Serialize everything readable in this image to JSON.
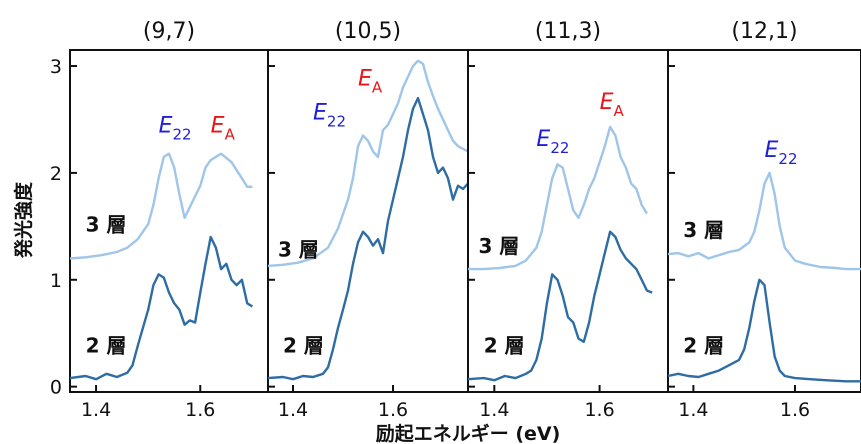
{
  "ylabel": "発光強度",
  "xlabel": "励起エネルギー (eV)",
  "colors": {
    "bilayer": "#2e6da4",
    "trilayer": "#9fc5e8",
    "e22": "#1f1fd6",
    "ea": "#e8151b",
    "frame": "#111111"
  },
  "y_ticks": [
    "0",
    "1",
    "2",
    "3"
  ],
  "y_tick_values": [
    0,
    1,
    2,
    3
  ],
  "chart_data": [
    {
      "type": "line",
      "title": "(9,7)",
      "xlim": [
        1.35,
        1.73
      ],
      "ylim": [
        -0.05,
        3.15
      ],
      "x_ticks": [
        "1.4",
        "1.6"
      ],
      "x_tick_values": [
        1.4,
        1.6
      ],
      "annotations": [
        {
          "main": "E",
          "sub": "22",
          "x": 1.52,
          "y": 2.38,
          "color": "e22"
        },
        {
          "main": "E",
          "sub": "A",
          "x": 1.62,
          "y": 2.38,
          "color": "ea"
        }
      ],
      "layer_labels": [
        {
          "text": "3 層",
          "x": 1.38,
          "y": 1.45
        },
        {
          "text": "2 層",
          "x": 1.38,
          "y": 0.32
        }
      ],
      "series": [
        {
          "name": "3 層",
          "color": "trilayer",
          "x": [
            1.35,
            1.38,
            1.41,
            1.44,
            1.46,
            1.48,
            1.5,
            1.51,
            1.52,
            1.53,
            1.54,
            1.55,
            1.56,
            1.57,
            1.58,
            1.6,
            1.61,
            1.62,
            1.63,
            1.64,
            1.66,
            1.68,
            1.69,
            1.7
          ],
          "y": [
            1.2,
            1.21,
            1.23,
            1.26,
            1.3,
            1.38,
            1.52,
            1.7,
            1.95,
            2.15,
            2.18,
            2.05,
            1.8,
            1.58,
            1.68,
            1.88,
            2.05,
            2.12,
            2.15,
            2.18,
            2.1,
            1.95,
            1.87,
            1.87
          ]
        },
        {
          "name": "2 層",
          "color": "bilayer",
          "x": [
            1.35,
            1.38,
            1.4,
            1.42,
            1.44,
            1.46,
            1.47,
            1.48,
            1.49,
            1.5,
            1.51,
            1.52,
            1.53,
            1.54,
            1.55,
            1.56,
            1.57,
            1.58,
            1.59,
            1.6,
            1.61,
            1.62,
            1.63,
            1.64,
            1.65,
            1.66,
            1.67,
            1.68,
            1.69,
            1.7
          ],
          "y": [
            0.08,
            0.1,
            0.07,
            0.12,
            0.09,
            0.13,
            0.2,
            0.38,
            0.55,
            0.72,
            0.95,
            1.05,
            1.02,
            0.88,
            0.78,
            0.72,
            0.58,
            0.62,
            0.6,
            0.88,
            1.15,
            1.4,
            1.3,
            1.1,
            1.15,
            1.0,
            0.95,
            1.0,
            0.78,
            0.75
          ]
        }
      ]
    },
    {
      "type": "line",
      "title": "(10,5)",
      "xlim": [
        1.35,
        1.75
      ],
      "ylim": [
        -0.05,
        3.15
      ],
      "x_ticks": [
        "1.4",
        "1.6"
      ],
      "x_tick_values": [
        1.4,
        1.6
      ],
      "annotations": [
        {
          "main": "E",
          "sub": "22",
          "x": 1.44,
          "y": 2.5,
          "color": "e22"
        },
        {
          "main": "E",
          "sub": "A",
          "x": 1.53,
          "y": 2.82,
          "color": "ea"
        }
      ],
      "layer_labels": [
        {
          "text": "3 層",
          "x": 1.37,
          "y": 1.22
        },
        {
          "text": "2 層",
          "x": 1.38,
          "y": 0.32
        }
      ],
      "series": [
        {
          "name": "3 層",
          "color": "trilayer",
          "x": [
            1.35,
            1.38,
            1.41,
            1.44,
            1.47,
            1.49,
            1.51,
            1.52,
            1.53,
            1.54,
            1.55,
            1.56,
            1.57,
            1.58,
            1.59,
            1.6,
            1.61,
            1.62,
            1.63,
            1.64,
            1.65,
            1.66,
            1.67,
            1.68,
            1.69,
            1.7,
            1.71,
            1.72,
            1.73,
            1.75
          ],
          "y": [
            1.13,
            1.14,
            1.16,
            1.2,
            1.3,
            1.48,
            1.75,
            1.95,
            2.25,
            2.35,
            2.3,
            2.2,
            2.15,
            2.4,
            2.45,
            2.55,
            2.65,
            2.8,
            2.9,
            3.0,
            3.05,
            3.02,
            2.85,
            2.72,
            2.6,
            2.5,
            2.4,
            2.3,
            2.25,
            2.2
          ]
        },
        {
          "name": "2 層",
          "color": "bilayer",
          "x": [
            1.35,
            1.38,
            1.4,
            1.42,
            1.44,
            1.46,
            1.47,
            1.48,
            1.49,
            1.5,
            1.51,
            1.52,
            1.53,
            1.54,
            1.55,
            1.56,
            1.57,
            1.58,
            1.59,
            1.6,
            1.61,
            1.62,
            1.63,
            1.64,
            1.65,
            1.66,
            1.67,
            1.68,
            1.69,
            1.7,
            1.71,
            1.72,
            1.73,
            1.74,
            1.75
          ],
          "y": [
            0.08,
            0.09,
            0.07,
            0.1,
            0.09,
            0.12,
            0.18,
            0.35,
            0.55,
            0.72,
            0.9,
            1.15,
            1.35,
            1.45,
            1.4,
            1.32,
            1.38,
            1.25,
            1.55,
            1.75,
            1.95,
            2.15,
            2.4,
            2.6,
            2.7,
            2.55,
            2.4,
            2.15,
            2.0,
            2.05,
            1.95,
            1.75,
            1.88,
            1.85,
            1.9
          ]
        }
      ]
    },
    {
      "type": "line",
      "title": "(11,3)",
      "xlim": [
        1.35,
        1.73
      ],
      "ylim": [
        -0.05,
        3.15
      ],
      "x_ticks": [
        "1.4",
        "1.6"
      ],
      "x_tick_values": [
        1.4,
        1.6
      ],
      "annotations": [
        {
          "main": "E",
          "sub": "22",
          "x": 1.48,
          "y": 2.25,
          "color": "e22"
        },
        {
          "main": "E",
          "sub": "A",
          "x": 1.6,
          "y": 2.6,
          "color": "ea"
        }
      ],
      "layer_labels": [
        {
          "text": "3 層",
          "x": 1.37,
          "y": 1.25
        },
        {
          "text": "2 層",
          "x": 1.38,
          "y": 0.32
        }
      ],
      "series": [
        {
          "name": "3 層",
          "color": "trilayer",
          "x": [
            1.35,
            1.38,
            1.41,
            1.44,
            1.46,
            1.48,
            1.49,
            1.5,
            1.51,
            1.52,
            1.53,
            1.54,
            1.55,
            1.56,
            1.57,
            1.58,
            1.59,
            1.6,
            1.61,
            1.62,
            1.63,
            1.64,
            1.65,
            1.66,
            1.67,
            1.68,
            1.69
          ],
          "y": [
            1.1,
            1.1,
            1.11,
            1.13,
            1.18,
            1.3,
            1.45,
            1.7,
            1.95,
            2.08,
            2.05,
            1.85,
            1.65,
            1.58,
            1.7,
            1.85,
            1.95,
            2.1,
            2.25,
            2.43,
            2.35,
            2.15,
            2.05,
            1.9,
            1.85,
            1.7,
            1.62
          ]
        },
        {
          "name": "2 層",
          "color": "bilayer",
          "x": [
            1.35,
            1.38,
            1.4,
            1.42,
            1.44,
            1.46,
            1.47,
            1.48,
            1.49,
            1.5,
            1.51,
            1.52,
            1.53,
            1.54,
            1.55,
            1.56,
            1.57,
            1.58,
            1.59,
            1.6,
            1.61,
            1.62,
            1.63,
            1.64,
            1.65,
            1.66,
            1.67,
            1.68,
            1.69,
            1.7
          ],
          "y": [
            0.07,
            0.08,
            0.06,
            0.1,
            0.08,
            0.12,
            0.15,
            0.25,
            0.45,
            0.78,
            1.05,
            1.0,
            0.85,
            0.65,
            0.6,
            0.45,
            0.42,
            0.6,
            0.85,
            1.05,
            1.25,
            1.45,
            1.4,
            1.28,
            1.2,
            1.15,
            1.1,
            1.0,
            0.9,
            0.88
          ]
        }
      ]
    },
    {
      "type": "line",
      "title": "(12,1)",
      "xlim": [
        1.35,
        1.73
      ],
      "ylim": [
        -0.05,
        3.15
      ],
      "x_ticks": [
        "1.4",
        "1.6"
      ],
      "x_tick_values": [
        1.4,
        1.6
      ],
      "annotations": [
        {
          "main": "E",
          "sub": "22",
          "x": 1.54,
          "y": 2.15,
          "color": "e22"
        }
      ],
      "layer_labels": [
        {
          "text": "3 層",
          "x": 1.38,
          "y": 1.4
        },
        {
          "text": "2 層",
          "x": 1.38,
          "y": 0.32
        }
      ],
      "series": [
        {
          "name": "3 層",
          "color": "trilayer",
          "x": [
            1.35,
            1.37,
            1.39,
            1.41,
            1.43,
            1.45,
            1.47,
            1.49,
            1.51,
            1.52,
            1.53,
            1.54,
            1.55,
            1.56,
            1.57,
            1.58,
            1.6,
            1.62,
            1.65,
            1.68,
            1.7,
            1.73
          ],
          "y": [
            1.24,
            1.25,
            1.22,
            1.25,
            1.2,
            1.23,
            1.26,
            1.28,
            1.35,
            1.45,
            1.65,
            1.9,
            2.0,
            1.8,
            1.5,
            1.3,
            1.18,
            1.15,
            1.12,
            1.11,
            1.1,
            1.1
          ]
        },
        {
          "name": "2 層",
          "color": "bilayer",
          "x": [
            1.35,
            1.37,
            1.39,
            1.41,
            1.43,
            1.45,
            1.47,
            1.49,
            1.5,
            1.51,
            1.52,
            1.53,
            1.54,
            1.55,
            1.56,
            1.57,
            1.58,
            1.6,
            1.63,
            1.66,
            1.7,
            1.73
          ],
          "y": [
            0.1,
            0.12,
            0.1,
            0.09,
            0.12,
            0.15,
            0.2,
            0.25,
            0.35,
            0.55,
            0.8,
            1.0,
            0.95,
            0.6,
            0.28,
            0.15,
            0.1,
            0.08,
            0.07,
            0.06,
            0.05,
            0.05
          ]
        }
      ]
    }
  ]
}
